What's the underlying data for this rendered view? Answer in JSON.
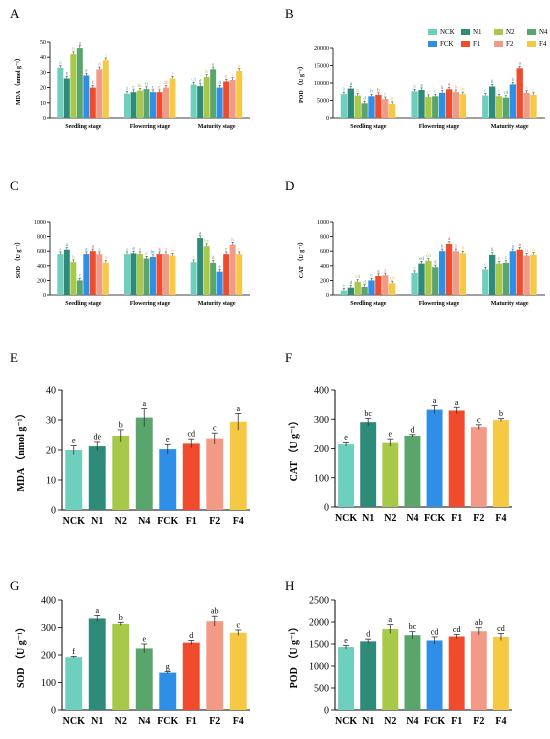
{
  "colors": {
    "NCK": "#6fcfbf",
    "N1": "#2e8b7a",
    "N2": "#a8c84a",
    "N4": "#5aa56c",
    "FCK": "#2f8fe6",
    "F1": "#ef4b2c",
    "F2": "#f29a86",
    "F4": "#f6c944"
  },
  "legend": {
    "entries": [
      "NCK",
      "N1",
      "N2",
      "N4",
      "FCK",
      "F1",
      "F2",
      "F4"
    ]
  },
  "chart_data": [
    {
      "panel": "A",
      "type": "bar",
      "ylabel": "MDA （nmol g⁻¹）",
      "ylim": [
        0,
        50
      ],
      "yticks": [
        0,
        10,
        20,
        30,
        40,
        50
      ],
      "groups": [
        "Seedling stage",
        "Flowering stage",
        "Maturity stage"
      ],
      "series": [
        {
          "name": "NCK",
          "values": [
            33,
            16,
            22
          ],
          "letters": [
            "d",
            "d",
            "cd"
          ]
        },
        {
          "name": "N1",
          "values": [
            26,
            17,
            21
          ],
          "letters": [
            "e",
            "c",
            "d"
          ]
        },
        {
          "name": "N2",
          "values": [
            42,
            18,
            27
          ],
          "letters": [
            "b",
            "bc",
            "b"
          ]
        },
        {
          "name": "N4",
          "values": [
            46,
            19,
            32
          ],
          "letters": [
            "a",
            "b",
            "a"
          ]
        },
        {
          "name": "FCK",
          "values": [
            28,
            17,
            20
          ],
          "letters": [
            "e",
            "c",
            "d"
          ]
        },
        {
          "name": "F1",
          "values": [
            20,
            17,
            24
          ],
          "letters": [
            "f",
            "c",
            "c"
          ]
        },
        {
          "name": "F2",
          "values": [
            32,
            20,
            25
          ],
          "letters": [
            "d",
            "ab",
            "c"
          ]
        },
        {
          "name": "F4",
          "values": [
            38,
            26,
            31
          ],
          "letters": [
            "c",
            "a",
            "a"
          ]
        }
      ]
    },
    {
      "panel": "B",
      "type": "bar",
      "ylabel": "POD （U g⁻¹）",
      "ylim": [
        0,
        20000
      ],
      "yticks": [
        0,
        5000,
        10000,
        15000,
        20000
      ],
      "groups": [
        "Seedling stage",
        "Flowering stage",
        "Maturity stage"
      ],
      "series": [
        {
          "name": "NCK",
          "values": [
            6800,
            7600,
            6400
          ],
          "letters": [
            "b",
            "b",
            "c"
          ]
        },
        {
          "name": "N1",
          "values": [
            8400,
            8000,
            9000
          ],
          "letters": [
            "a",
            "a",
            "b"
          ]
        },
        {
          "name": "N2",
          "values": [
            6400,
            6000,
            6200
          ],
          "letters": [
            "b",
            "c",
            "c"
          ]
        },
        {
          "name": "N4",
          "values": [
            4200,
            6200,
            5800
          ],
          "letters": [
            "d",
            "c",
            "cd"
          ]
        },
        {
          "name": "FCK",
          "values": [
            6200,
            7200,
            9600
          ],
          "letters": [
            "b",
            "b",
            "b"
          ]
        },
        {
          "name": "F1",
          "values": [
            6600,
            8200,
            14200
          ],
          "letters": [
            "b",
            "a",
            "a"
          ]
        },
        {
          "name": "F2",
          "values": [
            5400,
            7400,
            7200
          ],
          "letters": [
            "c",
            "b",
            "c"
          ]
        },
        {
          "name": "F4",
          "values": [
            4000,
            6800,
            6600
          ],
          "letters": [
            "d",
            "bc",
            "c"
          ]
        }
      ]
    },
    {
      "panel": "C",
      "type": "bar",
      "ylabel": "SOD （U g⁻¹）",
      "ylim": [
        0,
        1000
      ],
      "yticks": [
        0,
        200,
        400,
        600,
        800,
        1000
      ],
      "groups": [
        "Seedling stage",
        "Flowering stage",
        "Maturity stage"
      ],
      "series": [
        {
          "name": "NCK",
          "values": [
            560,
            560,
            450
          ],
          "letters": [
            "a",
            "a",
            "c"
          ]
        },
        {
          "name": "N1",
          "values": [
            620,
            570,
            780
          ],
          "letters": [
            "a",
            "a",
            "a"
          ]
        },
        {
          "name": "N2",
          "values": [
            450,
            560,
            670
          ],
          "letters": [
            "b",
            "a",
            "bc"
          ]
        },
        {
          "name": "N4",
          "values": [
            200,
            500,
            440
          ],
          "letters": [
            "c",
            "c",
            "d"
          ]
        },
        {
          "name": "FCK",
          "values": [
            560,
            520,
            320
          ],
          "letters": [
            "a",
            "bc",
            "e"
          ]
        },
        {
          "name": "F1",
          "values": [
            600,
            560,
            560
          ],
          "letters": [
            "a",
            "a",
            "c"
          ]
        },
        {
          "name": "F2",
          "values": [
            560,
            560,
            690
          ],
          "letters": [
            "a",
            "a",
            "b"
          ]
        },
        {
          "name": "F4",
          "values": [
            440,
            540,
            560
          ],
          "letters": [
            "b",
            "a",
            "c"
          ]
        }
      ]
    },
    {
      "panel": "D",
      "type": "bar",
      "ylabel": "CAT （U g⁻¹）",
      "ylim": [
        0,
        1000
      ],
      "yticks": [
        0,
        200,
        400,
        600,
        800,
        1000
      ],
      "groups": [
        "Seedling stage",
        "Flowering stage",
        "Maturity stage"
      ],
      "series": [
        {
          "name": "NCK",
          "values": [
            60,
            300,
            350
          ],
          "letters": [
            "e",
            "e",
            "c"
          ]
        },
        {
          "name": "N1",
          "values": [
            100,
            430,
            550
          ],
          "letters": [
            "d",
            "cd",
            "b"
          ]
        },
        {
          "name": "N2",
          "values": [
            180,
            470,
            430
          ],
          "letters": [
            "cd",
            "cd",
            "c"
          ]
        },
        {
          "name": "N4",
          "values": [
            110,
            380,
            440
          ],
          "letters": [
            "d",
            "d",
            "c"
          ]
        },
        {
          "name": "FCK",
          "values": [
            200,
            600,
            600
          ],
          "letters": [
            "c",
            "b",
            "a"
          ]
        },
        {
          "name": "F1",
          "values": [
            260,
            700,
            620
          ],
          "letters": [
            "a",
            "a",
            "a"
          ]
        },
        {
          "name": "F2",
          "values": [
            270,
            600,
            540
          ],
          "letters": [
            "a",
            "b",
            "b"
          ]
        },
        {
          "name": "F4",
          "values": [
            160,
            570,
            550
          ],
          "letters": [
            "cd",
            "b",
            "b"
          ]
        }
      ]
    },
    {
      "panel": "E",
      "type": "bar",
      "ylabel": "MDA （nmol g⁻¹）",
      "ylim": [
        0,
        40
      ],
      "yticks": [
        0,
        10,
        20,
        30,
        40
      ],
      "categories": [
        "NCK",
        "N1",
        "N2",
        "N4",
        "FCK",
        "F1",
        "F2",
        "F4"
      ],
      "values": [
        20,
        21.3,
        24.7,
        30.8,
        20.3,
        22.2,
        23.8,
        29.4
      ],
      "errors": [
        1.5,
        1.4,
        2.0,
        3.0,
        1.6,
        1.4,
        1.8,
        2.8
      ],
      "letters": [
        "e",
        "de",
        "b",
        "a",
        "e",
        "cd",
        "c",
        "a"
      ]
    },
    {
      "panel": "F",
      "type": "bar",
      "ylabel": "CAT （U g⁻¹）",
      "ylim": [
        0,
        400
      ],
      "yticks": [
        0,
        100,
        200,
        300,
        400
      ],
      "categories": [
        "NCK",
        "N1",
        "N2",
        "N4",
        "FCK",
        "F1",
        "F2",
        "F4"
      ],
      "values": [
        215,
        290,
        220,
        243,
        333,
        330,
        273,
        297
      ],
      "errors": [
        6,
        13,
        12,
        4,
        14,
        11,
        8,
        5
      ],
      "letters": [
        "e",
        "bc",
        "e",
        "d",
        "a",
        "a",
        "c",
        "b"
      ]
    },
    {
      "panel": "G",
      "type": "bar",
      "ylabel": "SOD （U g⁻¹）",
      "ylim": [
        0,
        400
      ],
      "yticks": [
        0,
        100,
        200,
        300,
        400
      ],
      "categories": [
        "NCK",
        "N1",
        "N2",
        "N4",
        "FCK",
        "F1",
        "F2",
        "F4"
      ],
      "values": [
        192,
        333,
        313,
        224,
        136,
        245,
        323,
        281
      ],
      "errors": [
        3,
        11,
        6,
        16,
        4,
        8,
        18,
        10
      ],
      "letters": [
        "f",
        "a",
        "b",
        "e",
        "g",
        "d",
        "ab",
        "c"
      ]
    },
    {
      "panel": "H",
      "type": "bar",
      "ylabel": "POD （U g⁻¹）",
      "ylim": [
        0,
        2500
      ],
      "yticks": [
        0,
        500,
        1000,
        1500,
        2000,
        2500
      ],
      "categories": [
        "NCK",
        "N1",
        "N2",
        "N4",
        "FCK",
        "F1",
        "F2",
        "F4"
      ],
      "values": [
        1430,
        1560,
        1840,
        1700,
        1580,
        1670,
        1790,
        1660
      ],
      "errors": [
        40,
        50,
        100,
        80,
        80,
        50,
        80,
        80
      ],
      "letters": [
        "e",
        "d",
        "a",
        "bc",
        "cd",
        "cd",
        "ab",
        "cd"
      ]
    }
  ]
}
